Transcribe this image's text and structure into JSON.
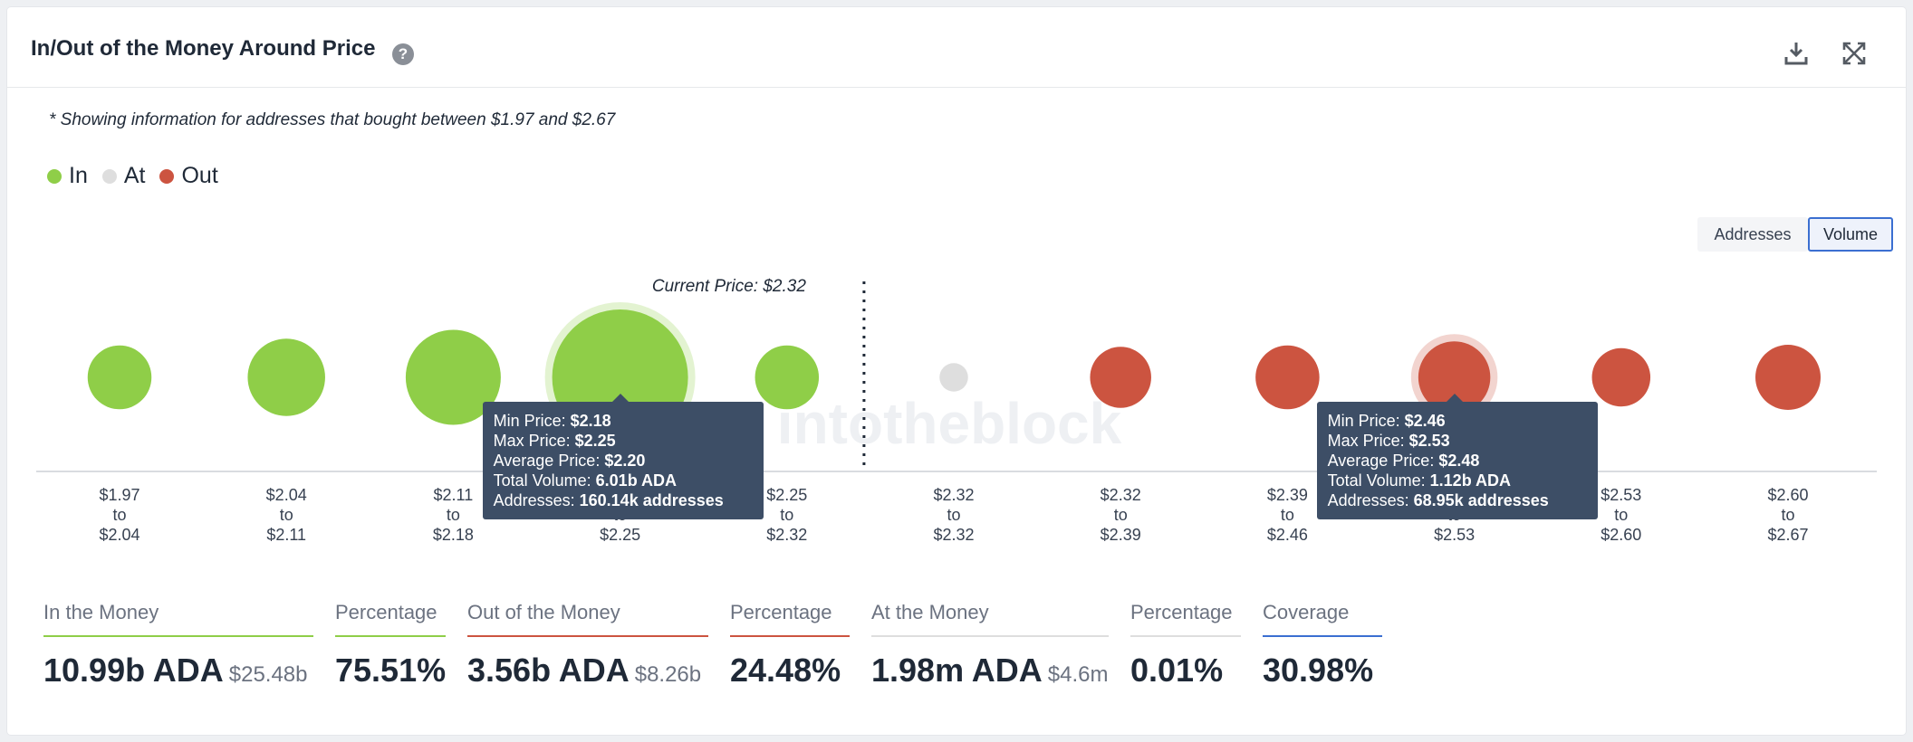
{
  "header": {
    "title": "In/Out of the Money Around Price"
  },
  "note": "* Showing information for addresses that bought between $1.97 and $2.67",
  "legend": [
    {
      "label": "In",
      "color": "#8fce48"
    },
    {
      "label": "At",
      "color": "#dedede"
    },
    {
      "label": "Out",
      "color": "#cc5440"
    }
  ],
  "toggle": {
    "addresses_label": "Addresses",
    "volume_label": "Volume",
    "active": "Volume"
  },
  "watermark": "intotheblock",
  "chart_data": {
    "type": "bubble",
    "current_price_label": "Current Price: $2.32",
    "current_price": 2.32,
    "buckets": [
      {
        "from": "$1.97",
        "to": "$2.04",
        "status": "in",
        "relative_size": 0.47
      },
      {
        "from": "$2.04",
        "to": "$2.11",
        "status": "in",
        "relative_size": 0.57
      },
      {
        "from": "$2.11",
        "to": "$2.18",
        "status": "in",
        "relative_size": 0.7
      },
      {
        "from": "$2.18",
        "to": "$2.25",
        "status": "in",
        "relative_size": 1.0,
        "highlighted": true
      },
      {
        "from": "$2.25",
        "to": "$2.32",
        "status": "in",
        "relative_size": 0.47
      },
      {
        "from": "$2.32",
        "to": "$2.32",
        "status": "at",
        "relative_size": 0.21
      },
      {
        "from": "$2.32",
        "to": "$2.39",
        "status": "out",
        "relative_size": 0.45
      },
      {
        "from": "$2.39",
        "to": "$2.46",
        "status": "out",
        "relative_size": 0.47
      },
      {
        "from": "$2.46",
        "to": "$2.53",
        "status": "out",
        "relative_size": 0.53,
        "highlighted": true
      },
      {
        "from": "$2.53",
        "to": "$2.60",
        "status": "out",
        "relative_size": 0.43
      },
      {
        "from": "$2.60",
        "to": "$2.67",
        "status": "out",
        "relative_size": 0.48
      }
    ],
    "to_word": "to",
    "tooltips": [
      {
        "bucket": 3,
        "lines": [
          {
            "label": "Min Price: ",
            "value": "$2.18"
          },
          {
            "label": "Max Price: ",
            "value": "$2.25"
          },
          {
            "label": "Average Price: ",
            "value": "$2.20"
          },
          {
            "label": "Total Volume: ",
            "value": "6.01b ADA"
          },
          {
            "label": "Addresses: ",
            "value": "160.14k addresses"
          }
        ]
      },
      {
        "bucket": 8,
        "lines": [
          {
            "label": "Min Price: ",
            "value": "$2.46"
          },
          {
            "label": "Max Price: ",
            "value": "$2.53"
          },
          {
            "label": "Average Price: ",
            "value": "$2.48"
          },
          {
            "label": "Total Volume: ",
            "value": "1.12b ADA"
          },
          {
            "label": "Addresses: ",
            "value": "68.95k addresses"
          }
        ]
      }
    ]
  },
  "stats": [
    {
      "label": "In the Money",
      "value": "10.99b ADA",
      "sub": "$25.48b",
      "color": "#8fce48"
    },
    {
      "label": "Percentage",
      "value": "75.51%",
      "sub": "",
      "color": "#8fce48"
    },
    {
      "label": "Out of the Money",
      "value": "3.56b ADA",
      "sub": "$8.26b",
      "color": "#cc5440"
    },
    {
      "label": "Percentage",
      "value": "24.48%",
      "sub": "",
      "color": "#cc5440"
    },
    {
      "label": "At the Money",
      "value": "1.98m ADA",
      "sub": "$4.6m",
      "color": "#dedede"
    },
    {
      "label": "Percentage",
      "value": "0.01%",
      "sub": "",
      "color": "#dedede"
    },
    {
      "label": "Coverage",
      "value": "30.98%",
      "sub": "",
      "color": "#3b6fd1"
    }
  ]
}
